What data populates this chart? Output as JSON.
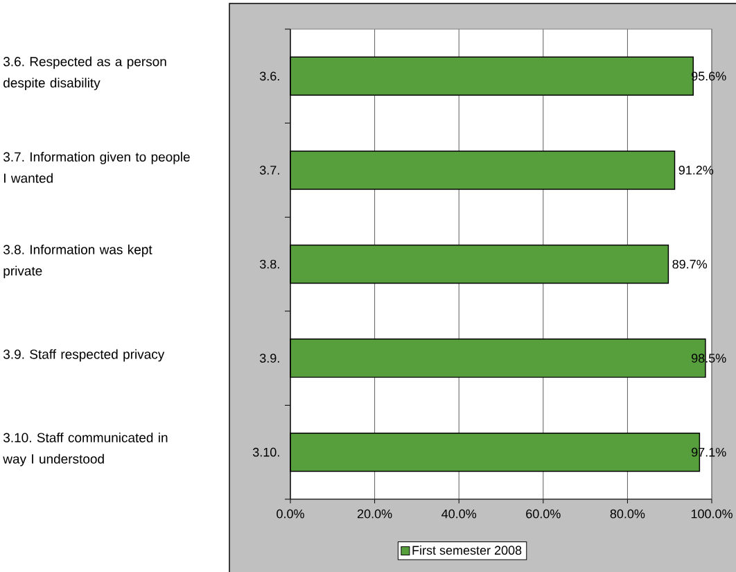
{
  "chart_data": {
    "type": "bar",
    "orientation": "horizontal",
    "categories": [
      "3.6.",
      "3.7.",
      "3.8.",
      "3.9.",
      "3.10."
    ],
    "series": [
      {
        "name": "First semester 2008",
        "color": "#569f3c",
        "values": [
          95.6,
          91.2,
          89.7,
          98.5,
          97.1
        ],
        "value_labels": [
          "95.6%",
          "91.2%",
          "89.7%",
          "98.5%",
          "97.1%"
        ]
      }
    ],
    "xlim": [
      0,
      100
    ],
    "xticks": [
      {
        "value": 0,
        "label": "0.0%"
      },
      {
        "value": 20,
        "label": "20.0%"
      },
      {
        "value": 40,
        "label": "40.0%"
      },
      {
        "value": 60,
        "label": "60.0%"
      },
      {
        "value": 80,
        "label": "80.0%"
      },
      {
        "value": 100,
        "label": "100.0%"
      }
    ],
    "grid": "x",
    "legend": "bottom",
    "annotations": [
      "3.6. Respected as a person despite disability",
      "3.7. Information given to people I wanted",
      "3.8. Information was kept private",
      "3.9. Staff respected privacy",
      "3.10. Staff communicated in way I understood"
    ]
  }
}
